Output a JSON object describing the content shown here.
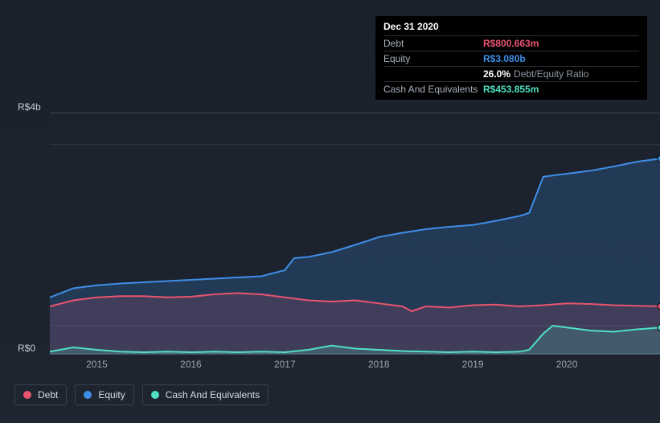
{
  "tooltip": {
    "date": "Dec 31 2020",
    "rows": [
      {
        "label": "Debt",
        "value": "R$800.663m",
        "color": "#e8546f"
      },
      {
        "label": "Equity",
        "value": "R$3.080b",
        "color": "#3f8ee8"
      },
      {
        "label": "",
        "value": "26.0%",
        "suffix": "Debt/Equity Ratio",
        "color": "#ffffff"
      },
      {
        "label": "Cash And Equivalents",
        "value": "R$453.855m",
        "color": "#4fe0c2"
      }
    ]
  },
  "chart": {
    "type": "area",
    "background_color": "#1b222d",
    "grid_color": "#3b4453",
    "axis_label_color": "#c6ccd4",
    "label_fontsize": 12,
    "y_axis": {
      "min": 0,
      "max": 4.0,
      "labels": [
        {
          "v": 0.0,
          "text": "R$0"
        },
        {
          "v": 4.0,
          "text": "R$4b"
        }
      ],
      "grid_at": [
        0.5,
        3.5
      ]
    },
    "x_axis": {
      "min": 2014.5,
      "max": 2021.0,
      "ticks": [
        2015,
        2016,
        2017,
        2018,
        2019,
        2020
      ]
    },
    "series": [
      {
        "name": "Equity",
        "color": "#3f8ee8",
        "fill_opacity": 0.22,
        "line_width": 2,
        "points": [
          [
            2014.5,
            0.95
          ],
          [
            2014.75,
            1.1
          ],
          [
            2015.0,
            1.15
          ],
          [
            2015.25,
            1.18
          ],
          [
            2015.5,
            1.2
          ],
          [
            2015.75,
            1.22
          ],
          [
            2016.0,
            1.24
          ],
          [
            2016.25,
            1.26
          ],
          [
            2016.5,
            1.28
          ],
          [
            2016.75,
            1.3
          ],
          [
            2017.0,
            1.4
          ],
          [
            2017.1,
            1.6
          ],
          [
            2017.25,
            1.62
          ],
          [
            2017.5,
            1.7
          ],
          [
            2017.75,
            1.82
          ],
          [
            2018.0,
            1.95
          ],
          [
            2018.25,
            2.02
          ],
          [
            2018.5,
            2.08
          ],
          [
            2018.75,
            2.12
          ],
          [
            2019.0,
            2.15
          ],
          [
            2019.25,
            2.22
          ],
          [
            2019.5,
            2.3
          ],
          [
            2019.6,
            2.35
          ],
          [
            2019.75,
            2.95
          ],
          [
            2020.0,
            3.0
          ],
          [
            2020.25,
            3.05
          ],
          [
            2020.5,
            3.12
          ],
          [
            2020.75,
            3.2
          ],
          [
            2021.0,
            3.25
          ]
        ]
      },
      {
        "name": "Debt",
        "color": "#e8546f",
        "fill_opacity": 0.15,
        "line_width": 2,
        "points": [
          [
            2014.5,
            0.8
          ],
          [
            2014.75,
            0.9
          ],
          [
            2015.0,
            0.95
          ],
          [
            2015.25,
            0.97
          ],
          [
            2015.5,
            0.97
          ],
          [
            2015.75,
            0.95
          ],
          [
            2016.0,
            0.96
          ],
          [
            2016.25,
            1.0
          ],
          [
            2016.5,
            1.02
          ],
          [
            2016.75,
            1.0
          ],
          [
            2017.0,
            0.95
          ],
          [
            2017.25,
            0.9
          ],
          [
            2017.5,
            0.88
          ],
          [
            2017.75,
            0.9
          ],
          [
            2018.0,
            0.85
          ],
          [
            2018.25,
            0.8
          ],
          [
            2018.35,
            0.72
          ],
          [
            2018.5,
            0.8
          ],
          [
            2018.75,
            0.78
          ],
          [
            2019.0,
            0.82
          ],
          [
            2019.25,
            0.83
          ],
          [
            2019.5,
            0.8
          ],
          [
            2019.75,
            0.82
          ],
          [
            2020.0,
            0.85
          ],
          [
            2020.25,
            0.84
          ],
          [
            2020.5,
            0.82
          ],
          [
            2020.75,
            0.81
          ],
          [
            2021.0,
            0.8
          ]
        ]
      },
      {
        "name": "Cash And Equivalents",
        "color": "#4fe0c2",
        "fill_opacity": 0.18,
        "line_width": 2,
        "points": [
          [
            2014.5,
            0.05
          ],
          [
            2014.75,
            0.12
          ],
          [
            2015.0,
            0.08
          ],
          [
            2015.25,
            0.05
          ],
          [
            2015.5,
            0.04
          ],
          [
            2015.75,
            0.05
          ],
          [
            2016.0,
            0.04
          ],
          [
            2016.25,
            0.05
          ],
          [
            2016.5,
            0.04
          ],
          [
            2016.75,
            0.05
          ],
          [
            2017.0,
            0.04
          ],
          [
            2017.25,
            0.08
          ],
          [
            2017.5,
            0.15
          ],
          [
            2017.75,
            0.1
          ],
          [
            2018.0,
            0.08
          ],
          [
            2018.25,
            0.06
          ],
          [
            2018.5,
            0.05
          ],
          [
            2018.75,
            0.04
          ],
          [
            2019.0,
            0.05
          ],
          [
            2019.25,
            0.04
          ],
          [
            2019.5,
            0.05
          ],
          [
            2019.6,
            0.08
          ],
          [
            2019.75,
            0.35
          ],
          [
            2019.85,
            0.48
          ],
          [
            2020.0,
            0.45
          ],
          [
            2020.25,
            0.4
          ],
          [
            2020.5,
            0.38
          ],
          [
            2020.75,
            0.42
          ],
          [
            2021.0,
            0.45
          ]
        ]
      }
    ]
  },
  "legend": {
    "items": [
      {
        "label": "Debt",
        "color": "#e8546f"
      },
      {
        "label": "Equity",
        "color": "#3f8ee8"
      },
      {
        "label": "Cash And Equivalents",
        "color": "#4fe0c2"
      }
    ],
    "border_color": "#3a4250",
    "text_color": "#d6dbe2",
    "fontsize": 12
  }
}
